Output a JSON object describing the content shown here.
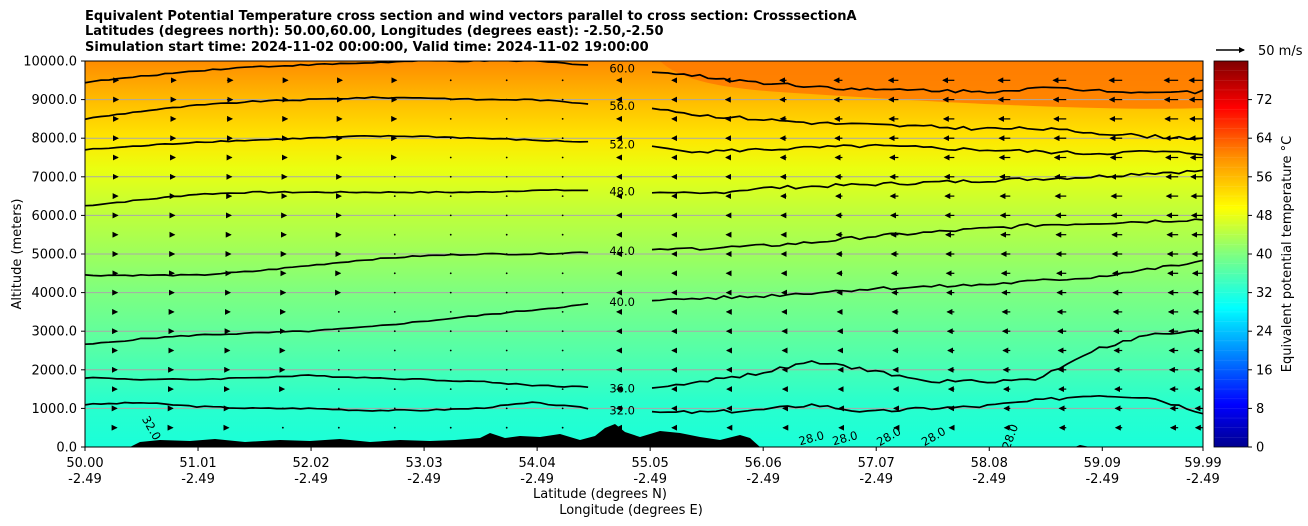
{
  "title": {
    "line1": "Equivalent Potential Temperature cross section and wind vectors parallel to cross section: CrosssectionA",
    "line2": "Latitudes (degrees north): 50.00,60.00, Longitudes (degrees east): -2.50,-2.50",
    "line3": "Simulation start time: 2024-11-02 00:00:00, Valid time: 2024-11-02 19:00:00"
  },
  "chart_data": {
    "type": "contour",
    "title": "Equivalent Potential Temperature cross section and wind vectors parallel to cross section: CrosssectionA",
    "xlabel_line1": "Latitude (degrees N)",
    "xlabel_line2": "Longitude (degrees E)",
    "ylabel": "Altitude (meters)",
    "ylim": [
      0,
      10000
    ],
    "xlim": [
      50.0,
      59.99
    ],
    "y_ticks": [
      "0.0",
      "1000.0",
      "2000.0",
      "3000.0",
      "4000.0",
      "5000.0",
      "6000.0",
      "7000.0",
      "8000.0",
      "9000.0",
      "10000.0"
    ],
    "y_tick_values": [
      0,
      1000,
      2000,
      3000,
      4000,
      5000,
      6000,
      7000,
      8000,
      9000,
      10000
    ],
    "x_ticks": [
      {
        "lat": "50.00",
        "lon": "-2.49",
        "value": 50.0
      },
      {
        "lat": "51.01",
        "lon": "-2.49",
        "value": 51.01
      },
      {
        "lat": "52.02",
        "lon": "-2.49",
        "value": 52.02
      },
      {
        "lat": "53.03",
        "lon": "-2.49",
        "value": 53.03
      },
      {
        "lat": "54.04",
        "lon": "-2.49",
        "value": 54.04
      },
      {
        "lat": "55.05",
        "lon": "-2.49",
        "value": 55.05
      },
      {
        "lat": "56.06",
        "lon": "-2.49",
        "value": 56.06
      },
      {
        "lat": "57.07",
        "lon": "-2.49",
        "value": 57.07
      },
      {
        "lat": "58.08",
        "lon": "-2.49",
        "value": 58.08
      },
      {
        "lat": "59.09",
        "lon": "-2.49",
        "value": 59.09
      },
      {
        "lat": "59.99",
        "lon": "-2.49",
        "value": 59.99
      }
    ],
    "grid": "horizontal",
    "colorbar": {
      "label": "Equivalent potential temperature $^\\circ$C",
      "label_text": "Equivalent potential temperature °C",
      "min": 0,
      "max": 80,
      "ticks": [
        "0",
        "8",
        "16",
        "24",
        "32",
        "40",
        "48",
        "56",
        "64",
        "72"
      ],
      "tick_values": [
        0,
        8,
        16,
        24,
        32,
        40,
        48,
        56,
        64,
        72
      ]
    },
    "contours": [
      {
        "level": "32.0",
        "value": 32,
        "alt": [
          1100,
          1150,
          1050,
          1000,
          1000,
          950,
          950,
          1000,
          1150,
          1000,
          900,
          900,
          950,
          1100,
          900,
          1000,
          1050,
          1200,
          1350,
          1300,
          900
        ]
      },
      {
        "level": "36.0",
        "value": 36,
        "alt": [
          1800,
          1750,
          1750,
          1800,
          1850,
          1800,
          1750,
          1700,
          1600,
          1550,
          1500,
          1700,
          1900,
          2200,
          2000,
          1700,
          1700,
          1750,
          2500,
          2900,
          3000
        ]
      },
      {
        "level": "40.0",
        "value": 40,
        "alt": [
          2650,
          2800,
          2900,
          2950,
          3000,
          3100,
          3250,
          3400,
          3550,
          3700,
          3800,
          3850,
          3900,
          4000,
          4100,
          4150,
          4200,
          4300,
          4400,
          4600,
          4800
        ]
      },
      {
        "level": "44.0",
        "value": 44,
        "alt": [
          4450,
          4450,
          4450,
          4550,
          4700,
          4850,
          4950,
          5000,
          5000,
          5050,
          5100,
          5150,
          5200,
          5300,
          5450,
          5550,
          5650,
          5750,
          5800,
          5850,
          5900
        ]
      },
      {
        "level": "48.0",
        "value": 48,
        "alt": [
          6250,
          6400,
          6550,
          6600,
          6600,
          6600,
          6600,
          6600,
          6650,
          6650,
          6600,
          6550,
          6700,
          6750,
          6800,
          6850,
          6900,
          6950,
          7000,
          7100,
          7150
        ]
      },
      {
        "level": "52.0",
        "value": 52,
        "alt": [
          7700,
          7800,
          7900,
          7950,
          8000,
          8050,
          8050,
          8000,
          7950,
          7900,
          7800,
          7650,
          7700,
          7750,
          7800,
          7750,
          7700,
          7650,
          7600,
          7650,
          7600
        ]
      },
      {
        "level": "56.0",
        "value": 56,
        "alt": [
          8500,
          8700,
          8850,
          8950,
          9000,
          9050,
          9050,
          9000,
          9000,
          8900,
          8800,
          8600,
          8500,
          8400,
          8350,
          8300,
          8250,
          8250,
          8150,
          8050,
          8000
        ]
      },
      {
        "level": "60.0",
        "value": 60,
        "alt": [
          9450,
          9600,
          9750,
          9850,
          9900,
          9950,
          10000,
          10000,
          10000,
          9900,
          9750,
          9600,
          9450,
          9350,
          9250,
          9250,
          9200,
          9300,
          9250,
          9200,
          9200
        ]
      }
    ],
    "contour_x": [
      50.0,
      50.5,
      51.0,
      51.5,
      52.0,
      52.5,
      53.0,
      53.5,
      54.0,
      54.5,
      55.0,
      55.5,
      56.0,
      56.5,
      57.0,
      57.5,
      58.0,
      58.5,
      59.0,
      59.5,
      59.99
    ],
    "surface_labels": [
      "32.0",
      "28.0",
      "28.0",
      "28.0",
      "28.0",
      "28.0"
    ],
    "wind_reference": {
      "label": "50 m/s",
      "value": 50
    },
    "wind_vectors": {
      "columns": [
        50.0,
        50.5,
        51.0,
        51.5,
        52.0,
        52.5,
        53.0,
        53.5,
        54.0,
        54.5,
        55.0,
        55.5,
        56.0,
        56.5,
        57.0,
        57.5,
        58.0,
        58.5,
        59.0,
        59.5,
        59.99
      ],
      "rows": [
        500,
        1000,
        1500,
        2000,
        2500,
        3000,
        3500,
        4000,
        4500,
        5000,
        5500,
        6000,
        6500,
        7000,
        7500,
        8000,
        8500,
        9000,
        9500
      ],
      "u_surface": [
        1,
        1,
        1,
        0.5,
        0,
        0,
        0,
        0,
        -0.5,
        -1,
        -1.5,
        -2,
        -2,
        -2,
        -2.5,
        -3,
        -3.5,
        -4,
        -4,
        -4.5,
        -4.5
      ],
      "u_top": [
        2,
        3,
        3.5,
        3,
        2,
        1,
        0.5,
        0,
        -0.5,
        -1,
        -1.5,
        -3,
        -4,
        -5,
        -6,
        -7,
        -7.5,
        -8,
        -8,
        -8.5,
        -8.5
      ]
    }
  }
}
